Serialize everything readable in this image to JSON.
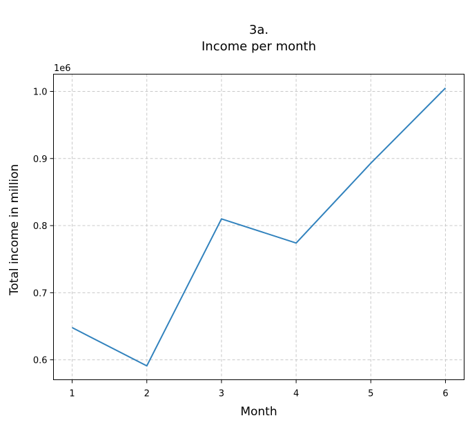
{
  "chart_data": {
    "type": "line",
    "title": "3a.",
    "subtitle": "Income per month",
    "xlabel": "Month",
    "ylabel": "Total income in million",
    "y_offset_label": "1e6",
    "x": [
      1,
      2,
      3,
      4,
      5,
      6
    ],
    "series": [
      {
        "values": [
          648000,
          591000,
          810000,
          774000,
          893000,
          1005000
        ]
      }
    ],
    "xticks": [
      "1",
      "2",
      "3",
      "4",
      "5",
      "6"
    ],
    "yticks": [
      "0.6",
      "0.7",
      "0.8",
      "0.9",
      "1.0"
    ],
    "ytick_values": [
      600000,
      700000,
      800000,
      900000,
      1000000
    ],
    "xlim": [
      0.75,
      6.25
    ],
    "ylim": [
      570300,
      1025700
    ],
    "grid": true,
    "line_color": "#3182bd",
    "grid_color": "#c8c8c8"
  }
}
